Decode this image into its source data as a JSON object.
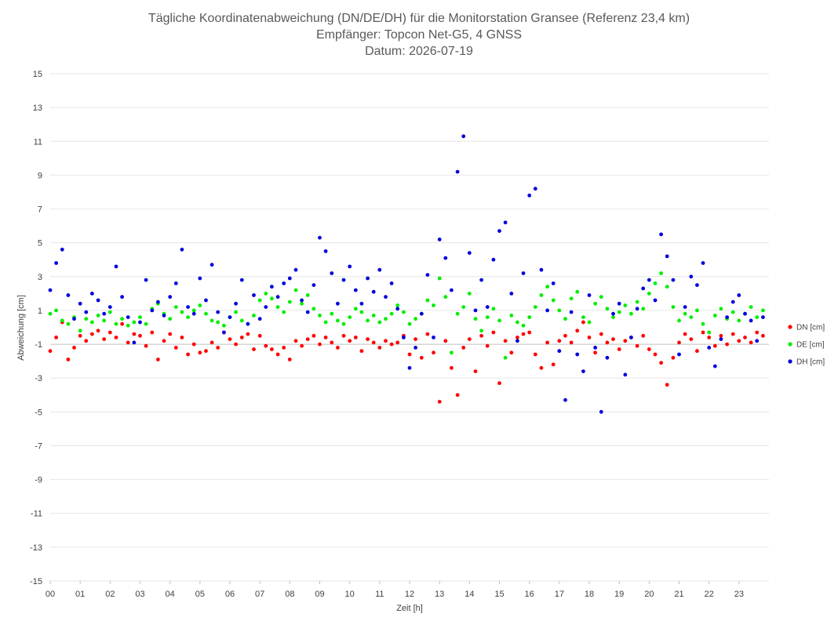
{
  "chart_data": {
    "type": "scatter",
    "title": [
      "Tägliche Koordinatenabweichung (DN/DE/DH) für die Monitorstation Gransee (Referenz 23,4 km)",
      "Empfänger: Topcon Net-G5, 4 GNSS",
      "Datum: 2026-07-19"
    ],
    "xlabel": "Zeit [h]",
    "ylabel": "Abweichung [cm]",
    "xlim": [
      0,
      24
    ],
    "ylim": [
      -15,
      15
    ],
    "x_ticks": [
      "00",
      "01",
      "02",
      "03",
      "04",
      "05",
      "06",
      "07",
      "08",
      "09",
      "10",
      "11",
      "12",
      "13",
      "14",
      "15",
      "16",
      "17",
      "18",
      "19",
      "20",
      "21",
      "22",
      "23"
    ],
    "y_ticks": [
      15,
      13,
      11,
      9,
      7,
      5,
      3,
      1,
      -1,
      -3,
      -5,
      -7,
      -9,
      -11,
      -13,
      -15
    ],
    "grid": "horizontal",
    "legend_position": "right",
    "series": [
      {
        "name": "DN [cm]",
        "color": "#ff0000",
        "x": [
          0.0,
          0.2,
          0.4,
          0.6,
          0.8,
          1.0,
          1.2,
          1.4,
          1.6,
          1.8,
          2.0,
          2.2,
          2.4,
          2.6,
          2.8,
          3.0,
          3.2,
          3.4,
          3.6,
          3.8,
          4.0,
          4.2,
          4.4,
          4.6,
          4.8,
          5.0,
          5.2,
          5.4,
          5.6,
          5.8,
          6.0,
          6.2,
          6.4,
          6.6,
          6.8,
          7.0,
          7.2,
          7.4,
          7.6,
          7.8,
          8.0,
          8.2,
          8.4,
          8.6,
          8.8,
          9.0,
          9.2,
          9.4,
          9.6,
          9.8,
          10.0,
          10.2,
          10.4,
          10.6,
          10.8,
          11.0,
          11.2,
          11.4,
          11.6,
          11.8,
          12.0,
          12.2,
          12.4,
          12.6,
          12.8,
          13.0,
          13.2,
          13.4,
          13.6,
          13.8,
          14.0,
          14.2,
          14.4,
          14.6,
          14.8,
          15.0,
          15.2,
          15.4,
          15.6,
          15.8,
          16.0,
          16.2,
          16.4,
          16.6,
          16.8,
          17.0,
          17.2,
          17.4,
          17.6,
          17.8,
          18.0,
          18.2,
          18.4,
          18.6,
          18.8,
          19.0,
          19.2,
          19.4,
          19.6,
          19.8,
          20.0,
          20.2,
          20.4,
          20.6,
          20.8,
          21.0,
          21.2,
          21.4,
          21.6,
          21.8,
          22.0,
          22.2,
          22.4,
          22.6,
          22.8,
          23.0,
          23.2,
          23.4,
          23.6,
          23.8
        ],
        "y": [
          -1.4,
          -0.6,
          0.3,
          -1.9,
          -1.2,
          -0.5,
          -0.8,
          -0.4,
          -0.2,
          -0.7,
          -0.3,
          -0.6,
          0.2,
          -0.9,
          -0.4,
          -0.5,
          -1.1,
          -0.3,
          -1.9,
          -0.8,
          -0.4,
          -1.2,
          -0.6,
          -1.6,
          -1.0,
          -1.5,
          -1.4,
          -0.9,
          -1.2,
          -0.3,
          -0.7,
          -1.0,
          -0.6,
          -0.4,
          -1.3,
          -0.5,
          -1.1,
          -1.3,
          -1.6,
          -1.2,
          -1.9,
          -0.8,
          -1.1,
          -0.7,
          -0.5,
          -1.0,
          -0.6,
          -0.9,
          -1.2,
          -0.5,
          -0.8,
          -0.6,
          -1.4,
          -0.7,
          -0.9,
          -1.2,
          -0.8,
          -1.0,
          -0.9,
          -0.5,
          -1.6,
          -0.7,
          -1.8,
          -0.4,
          -1.5,
          -4.4,
          -0.8,
          -2.4,
          -4.0,
          -1.2,
          -0.7,
          -2.6,
          -0.5,
          -1.1,
          -0.3,
          -3.3,
          -0.8,
          -1.5,
          -0.6,
          -0.4,
          -0.3,
          -1.6,
          -2.4,
          -0.9,
          -2.2,
          -0.8,
          -0.5,
          -0.9,
          -0.2,
          0.3,
          -0.6,
          -1.5,
          -0.4,
          -0.9,
          -0.7,
          -1.3,
          -0.8,
          -0.6,
          -1.1,
          -0.5,
          -1.3,
          -1.6,
          -2.1,
          -3.4,
          -1.8,
          -0.9,
          -0.4,
          -0.7,
          -1.4,
          -0.3,
          -0.6,
          -1.1,
          -0.5,
          -1.0,
          -0.4,
          -0.8,
          -0.6,
          -0.9,
          -0.3,
          -0.5
        ]
      },
      {
        "name": "DE [cm]",
        "color": "#00ee00",
        "x": [
          0.0,
          0.2,
          0.4,
          0.6,
          0.8,
          1.0,
          1.2,
          1.4,
          1.6,
          1.8,
          2.0,
          2.2,
          2.4,
          2.6,
          2.8,
          3.0,
          3.2,
          3.4,
          3.6,
          3.8,
          4.0,
          4.2,
          4.4,
          4.6,
          4.8,
          5.0,
          5.2,
          5.4,
          5.6,
          5.8,
          6.0,
          6.2,
          6.4,
          6.6,
          6.8,
          7.0,
          7.2,
          7.4,
          7.6,
          7.8,
          8.0,
          8.2,
          8.4,
          8.6,
          8.8,
          9.0,
          9.2,
          9.4,
          9.6,
          9.8,
          10.0,
          10.2,
          10.4,
          10.6,
          10.8,
          11.0,
          11.2,
          11.4,
          11.6,
          11.8,
          12.0,
          12.2,
          12.4,
          12.6,
          12.8,
          13.0,
          13.2,
          13.4,
          13.6,
          13.8,
          14.0,
          14.2,
          14.4,
          14.6,
          14.8,
          15.0,
          15.2,
          15.4,
          15.6,
          15.8,
          16.0,
          16.2,
          16.4,
          16.6,
          16.8,
          17.0,
          17.2,
          17.4,
          17.6,
          17.8,
          18.0,
          18.2,
          18.4,
          18.6,
          18.8,
          19.0,
          19.2,
          19.4,
          19.6,
          19.8,
          20.0,
          20.2,
          20.4,
          20.6,
          20.8,
          21.0,
          21.2,
          21.4,
          21.6,
          21.8,
          22.0,
          22.2,
          22.4,
          22.6,
          22.8,
          23.0,
          23.2,
          23.4,
          23.6,
          23.8
        ],
        "y": [
          0.8,
          1.0,
          0.4,
          0.2,
          0.6,
          -0.2,
          0.5,
          0.3,
          0.7,
          0.4,
          0.9,
          0.2,
          0.5,
          0.1,
          0.3,
          0.6,
          0.2,
          1.1,
          1.4,
          0.8,
          0.5,
          1.2,
          0.9,
          0.6,
          1.0,
          1.3,
          0.8,
          0.4,
          0.3,
          0.1,
          0.6,
          0.9,
          0.4,
          0.2,
          0.7,
          1.6,
          2.0,
          1.7,
          1.2,
          0.9,
          1.5,
          2.2,
          1.4,
          1.9,
          1.1,
          0.7,
          0.3,
          0.8,
          0.4,
          0.2,
          0.6,
          1.1,
          0.9,
          0.4,
          0.7,
          0.3,
          0.5,
          0.8,
          1.3,
          0.9,
          0.2,
          0.5,
          0.8,
          1.6,
          1.3,
          2.9,
          1.8,
          -1.5,
          0.8,
          1.2,
          2.0,
          0.5,
          -0.2,
          0.6,
          1.1,
          0.4,
          -1.8,
          0.7,
          0.3,
          0.1,
          0.6,
          1.2,
          1.9,
          2.4,
          1.6,
          1.0,
          0.5,
          1.7,
          2.1,
          0.6,
          0.3,
          1.4,
          1.8,
          1.1,
          0.6,
          0.9,
          1.3,
          0.8,
          1.5,
          1.1,
          2.0,
          2.6,
          3.2,
          2.4,
          1.2,
          0.4,
          0.8,
          0.6,
          1.0,
          0.2,
          -0.3,
          0.7,
          1.1,
          0.5,
          0.9,
          0.4,
          0.8,
          1.2,
          0.6,
          1.0
        ]
      },
      {
        "name": "DH [cm]",
        "color": "#0000dd",
        "x": [
          0.0,
          0.2,
          0.4,
          0.6,
          0.8,
          1.0,
          1.2,
          1.4,
          1.6,
          1.8,
          2.0,
          2.2,
          2.4,
          2.6,
          2.8,
          3.0,
          3.2,
          3.4,
          3.6,
          3.8,
          4.0,
          4.2,
          4.4,
          4.6,
          4.8,
          5.0,
          5.2,
          5.4,
          5.6,
          5.8,
          6.0,
          6.2,
          6.4,
          6.6,
          6.8,
          7.0,
          7.2,
          7.4,
          7.6,
          7.8,
          8.0,
          8.2,
          8.4,
          8.6,
          8.8,
          9.0,
          9.2,
          9.4,
          9.6,
          9.8,
          10.0,
          10.2,
          10.4,
          10.6,
          10.8,
          11.0,
          11.2,
          11.4,
          11.6,
          11.8,
          12.0,
          12.2,
          12.4,
          12.6,
          12.8,
          13.0,
          13.2,
          13.4,
          13.6,
          13.8,
          14.0,
          14.2,
          14.4,
          14.6,
          14.8,
          15.0,
          15.2,
          15.4,
          15.6,
          15.8,
          16.0,
          16.2,
          16.4,
          16.6,
          16.8,
          17.0,
          17.2,
          17.4,
          17.6,
          17.8,
          18.0,
          18.2,
          18.4,
          18.6,
          18.8,
          19.0,
          19.2,
          19.4,
          19.6,
          19.8,
          20.0,
          20.2,
          20.4,
          20.6,
          20.8,
          21.0,
          21.2,
          21.4,
          21.6,
          21.8,
          22.0,
          22.2,
          22.4,
          22.6,
          22.8,
          23.0,
          23.2,
          23.4,
          23.6,
          23.8
        ],
        "y": [
          2.2,
          3.8,
          4.6,
          1.9,
          0.5,
          1.4,
          0.9,
          2.0,
          1.6,
          0.8,
          1.2,
          3.6,
          1.8,
          0.6,
          -0.9,
          0.3,
          2.8,
          1.0,
          1.5,
          0.7,
          1.8,
          2.6,
          4.6,
          1.2,
          0.8,
          2.9,
          1.6,
          3.7,
          0.9,
          -0.3,
          0.6,
          1.4,
          2.8,
          0.2,
          1.9,
          0.5,
          1.2,
          2.4,
          1.8,
          2.6,
          2.9,
          3.4,
          1.6,
          0.9,
          2.5,
          5.3,
          4.5,
          3.2,
          1.4,
          2.8,
          3.6,
          2.2,
          1.4,
          2.9,
          2.1,
          3.4,
          1.8,
          2.6,
          1.1,
          -0.6,
          -2.4,
          -1.2,
          0.8,
          3.1,
          -0.6,
          5.2,
          4.1,
          2.2,
          9.2,
          11.3,
          4.4,
          1.0,
          2.8,
          1.2,
          4.0,
          5.7,
          6.2,
          2.0,
          -0.8,
          3.2,
          7.8,
          8.2,
          3.4,
          1.0,
          2.6,
          -1.4,
          -4.3,
          0.9,
          -1.6,
          -2.6,
          1.9,
          -1.2,
          -5.0,
          -1.8,
          0.8,
          1.4,
          -2.8,
          -0.6,
          1.1,
          2.3,
          2.8,
          1.6,
          5.5,
          4.2,
          2.8,
          -1.6,
          1.2,
          3.0,
          2.5,
          3.8,
          -1.2,
          -2.3,
          -0.7,
          0.6,
          1.5,
          1.9,
          0.8,
          0.4,
          -0.8,
          0.6
        ]
      }
    ]
  }
}
